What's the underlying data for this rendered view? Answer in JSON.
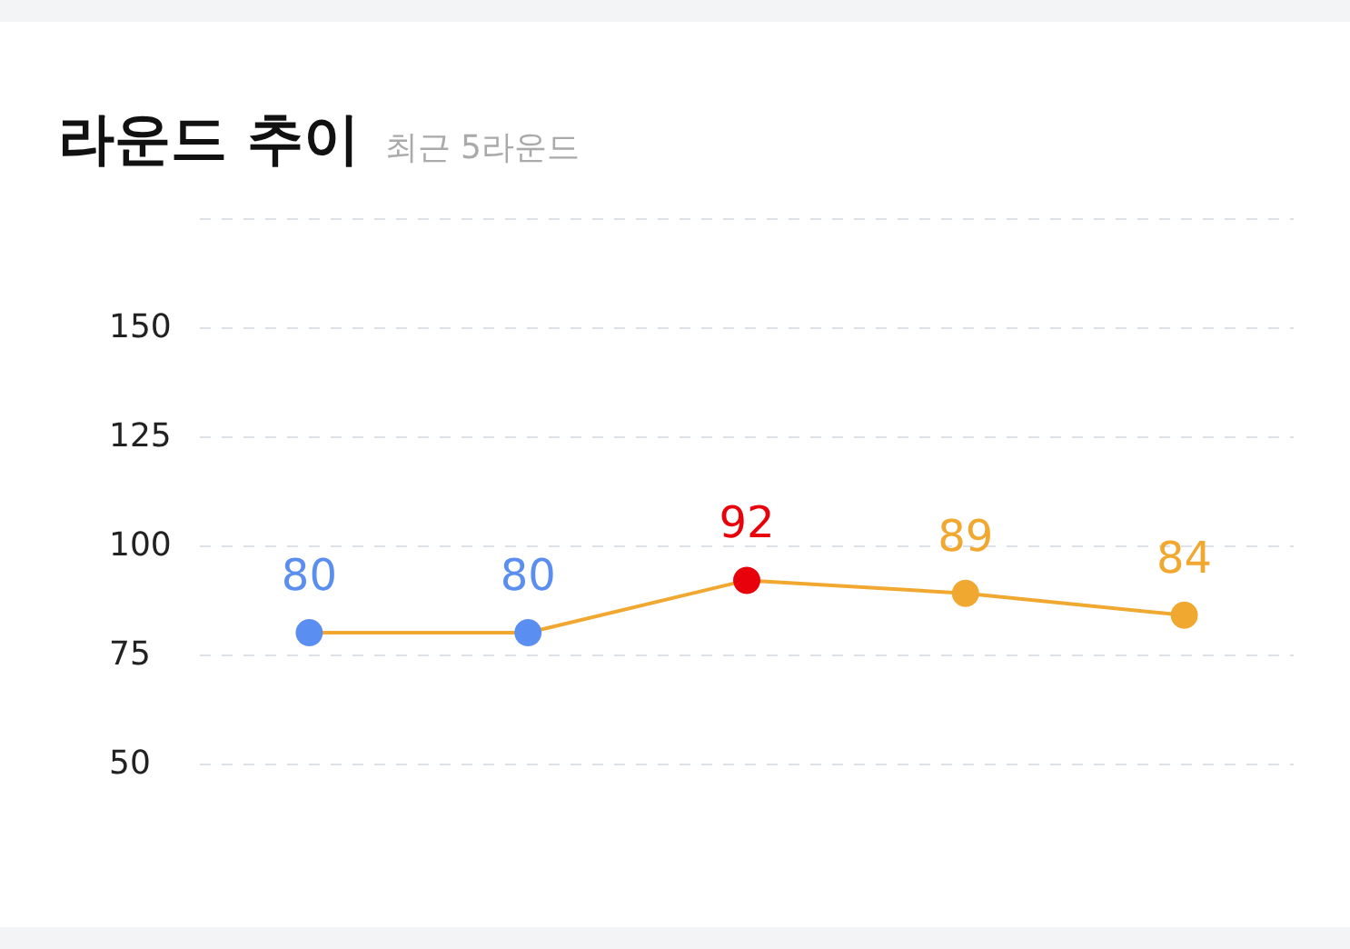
{
  "chart_data": {
    "type": "line",
    "title": "라운드 추이",
    "subtitle": "최근 5라운드",
    "categories": [
      null,
      null,
      null,
      null,
      null
    ],
    "series": [
      {
        "color": "#f0a830",
        "colors": [
          "#5a8ef0",
          "#5a8ef0",
          "#e8000b",
          "#f0a830",
          "#f0a830"
        ],
        "values": [
          80,
          80,
          92,
          89,
          84
        ]
      }
    ],
    "ylim": [
      50,
      175
    ],
    "yticks": [
      50,
      75,
      100,
      125,
      150,
      {
        "value": 175,
        "label": null
      }
    ],
    "grid": "y",
    "marker": "circle",
    "line_style": "solid",
    "data_labels": true
  }
}
